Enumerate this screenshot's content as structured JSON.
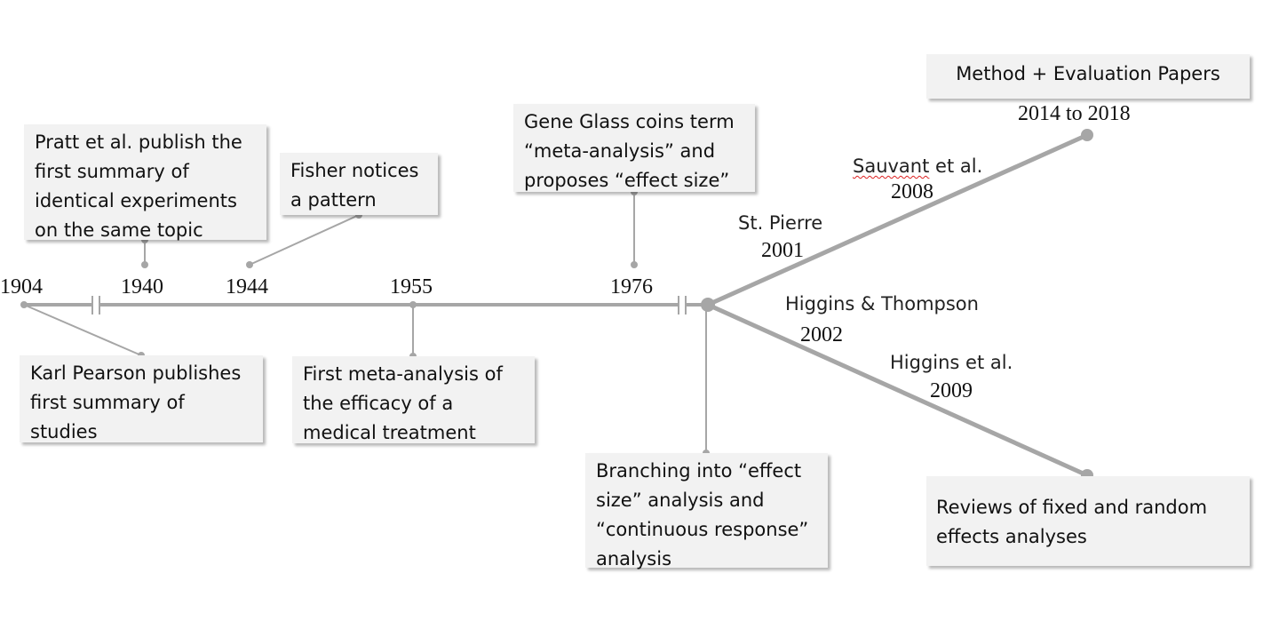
{
  "timeline": {
    "years": [
      "1904",
      "1940",
      "1944",
      "1955",
      "1976"
    ],
    "events": {
      "pearson": [
        "Karl Pearson publishes",
        "first summary of",
        "studies"
      ],
      "pratt": [
        "Pratt et al. publish the",
        "first summary of",
        "identical experiments",
        "on the same topic"
      ],
      "fisher": [
        "Fisher notices",
        "a pattern"
      ],
      "medical": [
        "First meta-analysis of",
        "the efficacy of a",
        "medical treatment"
      ],
      "glass": [
        "Gene Glass coins term",
        "“meta-analysis” and",
        "proposes “effect size”"
      ],
      "branching": [
        "Branching into “effect",
        "size” analysis and",
        "“continuous response”",
        "analysis"
      ]
    }
  },
  "branches": {
    "upper": {
      "title": "Method + Evaluation Papers",
      "range": "2014 to 2018",
      "refs": [
        {
          "name": "St. Pierre",
          "year": "2001"
        },
        {
          "name_spell": "Sauvant",
          "name_rest": " et al.",
          "year": "2008"
        }
      ]
    },
    "lower": {
      "title": [
        "Reviews of fixed and random",
        "effects analyses"
      ],
      "refs": [
        {
          "name": "Higgins & Thompson",
          "year": "2002"
        },
        {
          "name": "Higgins et al.",
          "year": "2009"
        }
      ]
    }
  },
  "colors": {
    "line": "#a6a6a6",
    "box_fill": "#f2f2f2"
  }
}
